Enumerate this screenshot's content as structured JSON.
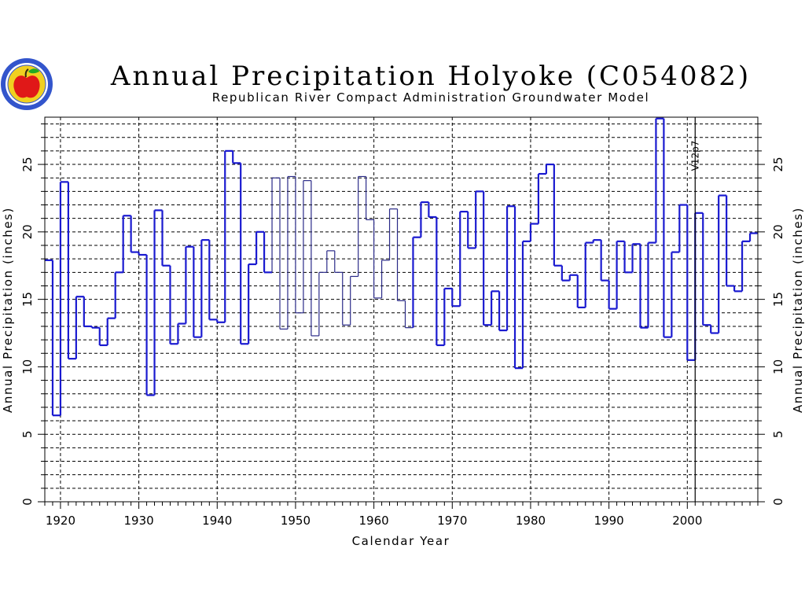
{
  "logo": {
    "icon": "apple-seal-logo",
    "ring_color": "#3355cc",
    "disk_color": "#f0d020",
    "apple_color": "#e01818",
    "leaf_color": "#22aa22"
  },
  "colors": {
    "series": "#1a1ad0",
    "series_thin": "#2a2a88",
    "grid": "#000000"
  },
  "chart_data": {
    "type": "line",
    "step": true,
    "title": "Annual Precipitation Holyoke (C054082)",
    "subtitle": "Republican River Compact Administration Groundwater Model",
    "xlabel": "Calendar Year",
    "ylabel": "Annual Precipitation (inches)",
    "ylabel_right": "Annual Precipitation (inches)",
    "xlim": [
      1918,
      2009
    ],
    "ylim": [
      0,
      28.5
    ],
    "xticks": [
      "1920",
      "1930",
      "1940",
      "1950",
      "1960",
      "1970",
      "1980",
      "1990",
      "2000"
    ],
    "yticks": [
      "0",
      "5",
      "10",
      "15",
      "20",
      "25"
    ],
    "grid": true,
    "legend": "none",
    "annotation": {
      "text": "V12p7",
      "x": 2001
    },
    "series": [
      {
        "x": [
          1918,
          1919,
          1920,
          1921,
          1922,
          1923,
          1924,
          1925,
          1926,
          1927,
          1928,
          1929,
          1930,
          1931,
          1932,
          1933,
          1934,
          1935,
          1936,
          1937,
          1938,
          1939,
          1940,
          1941,
          1942,
          1943,
          1944,
          1945,
          1946,
          1947,
          1948,
          1949,
          1950,
          1951,
          1952,
          1953,
          1954,
          1955,
          1956,
          1957,
          1958,
          1959,
          1960,
          1961,
          1962,
          1963,
          1964,
          1965,
          1966,
          1967,
          1968,
          1969,
          1970,
          1971,
          1972,
          1973,
          1974,
          1975,
          1976,
          1977,
          1978,
          1979,
          1980,
          1981,
          1982,
          1983,
          1984,
          1985,
          1986,
          1987,
          1988,
          1989,
          1990,
          1991,
          1992,
          1993,
          1994,
          1995,
          1996,
          1997,
          1998,
          1999,
          2000,
          2001,
          2002,
          2003,
          2004,
          2005,
          2006,
          2007,
          2008
        ],
        "values": [
          17.9,
          6.4,
          23.7,
          10.6,
          15.2,
          13.0,
          12.9,
          11.6,
          13.6,
          17.0,
          21.2,
          18.5,
          18.3,
          7.9,
          21.6,
          17.5,
          11.7,
          13.2,
          18.9,
          12.2,
          19.4,
          13.5,
          13.3,
          26.0,
          25.1,
          11.7,
          17.6,
          20.0,
          17.0,
          24.0,
          12.8,
          24.1,
          14.0,
          23.8,
          12.3,
          17.0,
          18.6,
          17.0,
          13.1,
          16.7,
          24.1,
          20.9,
          15.1,
          17.9,
          21.7,
          14.9,
          12.9,
          19.6,
          22.2,
          21.1,
          11.6,
          15.8,
          14.5,
          21.5,
          18.8,
          23.0,
          13.1,
          15.6,
          12.7,
          21.9,
          9.9,
          19.3,
          20.6,
          24.3,
          25.0,
          17.5,
          16.4,
          16.8,
          14.4,
          19.2,
          19.4,
          16.4,
          14.3,
          19.3,
          17.0,
          19.1,
          12.9,
          19.2,
          28.4,
          12.2,
          18.5,
          22.0,
          10.5,
          21.4,
          13.1,
          12.5,
          22.7,
          16.0,
          15.6,
          19.3,
          19.9
        ]
      }
    ]
  }
}
